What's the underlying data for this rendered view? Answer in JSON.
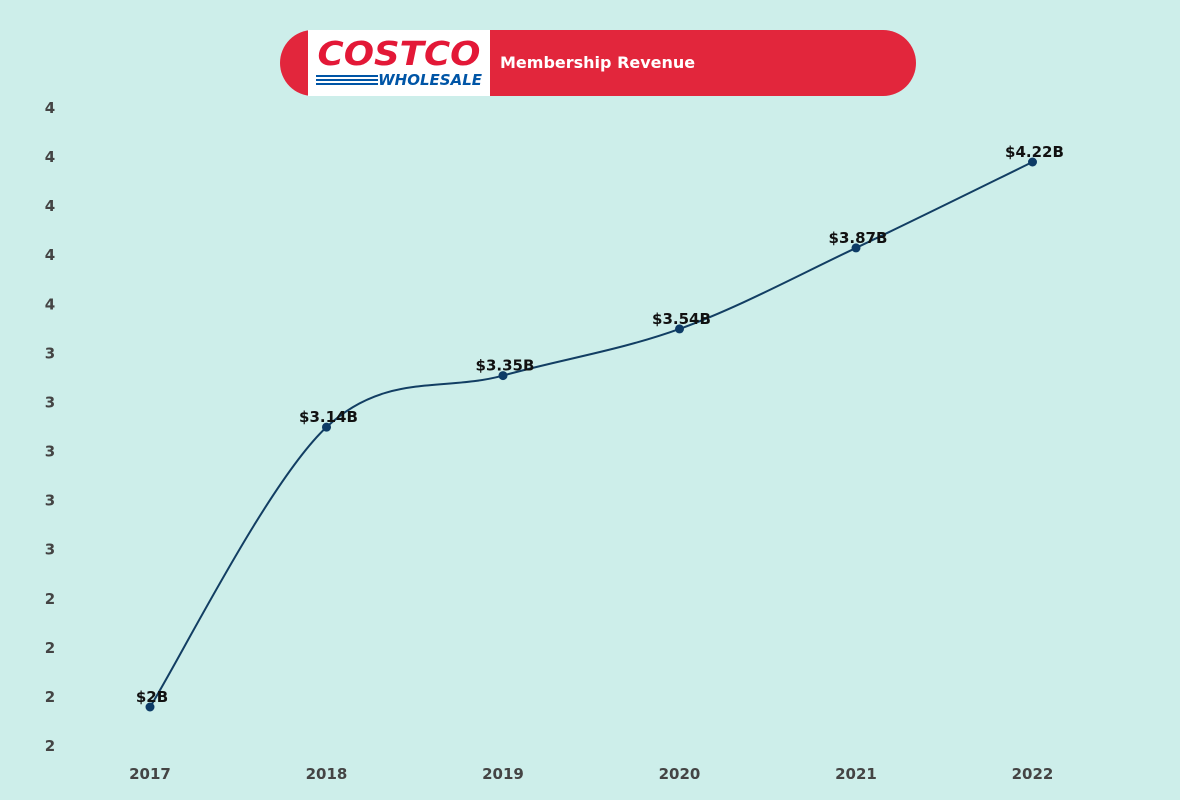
{
  "header": {
    "logo_top": "COSTCO",
    "logo_bottom": "WHOLESALE",
    "title": "Membership Revenue"
  },
  "colors": {
    "background": "#cdeeea",
    "title_pill": "#e2263c",
    "line": "#123e63",
    "point": "#0d3b66",
    "logo_red": "#e31837",
    "logo_blue": "#0055a6"
  },
  "chart_data": {
    "type": "line",
    "title": "Membership Revenue",
    "xlabel": "",
    "ylabel": "",
    "categories": [
      "2017",
      "2018",
      "2019",
      "2020",
      "2021",
      "2022"
    ],
    "values": [
      2.0,
      3.14,
      3.35,
      3.54,
      3.87,
      4.22
    ],
    "data_labels": [
      "$2B",
      "$3.14B",
      "$3.35B",
      "$3.54B",
      "$3.87B",
      "$4.22B"
    ],
    "ytick_labels": [
      "4",
      "4",
      "4",
      "4",
      "4",
      "3",
      "3",
      "3",
      "3",
      "3",
      "2",
      "2",
      "2",
      "2"
    ],
    "ylim": [
      1.8,
      4.4
    ],
    "grid": false,
    "legend": "none"
  }
}
